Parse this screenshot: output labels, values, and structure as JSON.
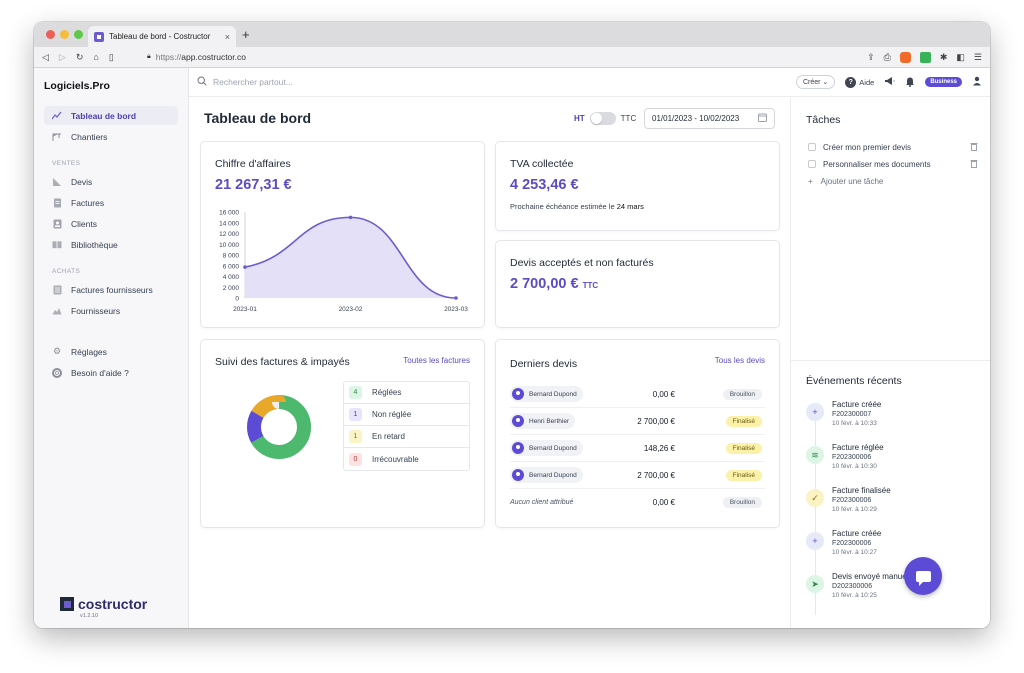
{
  "browser": {
    "tab_title": "Tableau de bord - Costructor",
    "tab_close": "×",
    "new_tab": "+",
    "url_protocol": "https://",
    "url_host": "app.costructor.co",
    "extension_badge": "1"
  },
  "sidebar": {
    "brand": "Logiciels.Pro",
    "items_top": [
      {
        "label": "Tableau de bord",
        "icon": "chart-line-icon",
        "active": true
      },
      {
        "label": "Chantiers",
        "icon": "crane-icon",
        "active": false
      }
    ],
    "section_sales": "VENTES",
    "items_sales": [
      {
        "label": "Devis",
        "icon": "chart-area-icon"
      },
      {
        "label": "Factures",
        "icon": "document-icon"
      },
      {
        "label": "Clients",
        "icon": "contact-card-icon"
      },
      {
        "label": "Bibliothèque",
        "icon": "books-icon"
      }
    ],
    "section_purchases": "ACHATS",
    "items_purchases": [
      {
        "label": "Factures fournisseurs",
        "icon": "list-document-icon"
      },
      {
        "label": "Fournisseurs",
        "icon": "chart-landscape-icon"
      }
    ],
    "items_bottom": [
      {
        "label": "Réglages",
        "icon": "gear-icon"
      },
      {
        "label": "Besoin d'aide ?",
        "icon": "lifebuoy-icon"
      }
    ],
    "logo_text": "costructor",
    "version": "v1.2.10"
  },
  "topbar": {
    "search_placeholder": "Rechercher partout...",
    "create_label": "Créer",
    "help_label": "Aide",
    "plan_badge": "Business"
  },
  "dashboard": {
    "title": "Tableau de bord",
    "toggle_ht": "HT",
    "toggle_ttc": "TTC",
    "date_range": "01/01/2023 - 10/02/2023"
  },
  "revenue_card": {
    "title": "Chiffre d'affaires",
    "amount": "21 267,31 €"
  },
  "chart_data": {
    "type": "area",
    "x": [
      "2023-01",
      "2023-02",
      "2023-03"
    ],
    "values": [
      5750,
      15000,
      0
    ],
    "y_ticks": [
      "16 000",
      "14 000",
      "12 000",
      "10 000",
      "8 000",
      "6 000",
      "4 000",
      "2 000",
      "0"
    ],
    "ylim": [
      0,
      16000
    ],
    "grid": false,
    "colors": {
      "line": "#6d5bd0",
      "fill": "#e4e0f8"
    }
  },
  "vat_card": {
    "title": "TVA collectée",
    "amount": "4 253,46 €",
    "note_prefix": "Prochaine échéance estimée le",
    "note_date": "24 mars"
  },
  "quotes_unbilled_card": {
    "title": "Devis acceptés et non facturés",
    "amount": "2 700,00 €",
    "suffix": "TTC"
  },
  "invoices_card": {
    "title": "Suivi des factures & impayés",
    "link": "Toutes les factures",
    "legend": [
      {
        "count": "4",
        "label": "Réglées",
        "color": "#4cb96f",
        "badge_bg": "#dcf5e4",
        "badge_fg": "#2f8a4c"
      },
      {
        "count": "1",
        "label": "Non réglée",
        "color": "#5b4bd5",
        "badge_bg": "#e7e4fb",
        "badge_fg": "#4c3fb0"
      },
      {
        "count": "1",
        "label": "En retard",
        "color": "#e8a82a",
        "badge_bg": "#fcf4c5",
        "badge_fg": "#8a6d10"
      },
      {
        "count": "0",
        "label": "Irrécouvrable",
        "color": "#e0524f",
        "badge_bg": "#fde2e1",
        "badge_fg": "#b43b38"
      }
    ],
    "donut_values": [
      4,
      1,
      1,
      0
    ]
  },
  "recent_quotes_card": {
    "title": "Derniers devis",
    "link": "Tous les devis",
    "rows": [
      {
        "client": "Bernard Dupond",
        "amount": "0,00 €",
        "status": "Brouillon",
        "status_type": "draft"
      },
      {
        "client": "Henri Berthier",
        "amount": "2 700,00 €",
        "status": "Finalisé",
        "status_type": "final"
      },
      {
        "client": "Bernard Dupond",
        "amount": "148,26 €",
        "status": "Finalisé",
        "status_type": "final"
      },
      {
        "client": "Bernard Dupond",
        "amount": "2 700,00 €",
        "status": "Finalisé",
        "status_type": "final"
      },
      {
        "client": "Aucun client attribué",
        "amount": "0,00 €",
        "status": "Brouillon",
        "status_type": "draft",
        "no_client": true
      }
    ]
  },
  "tasks": {
    "title": "Tâches",
    "items": [
      "Créer mon premier devis",
      "Personnaliser mes documents"
    ],
    "add_label": "Ajouter une tâche"
  },
  "events": {
    "title": "Événements récents",
    "items": [
      {
        "title": "Facture créée",
        "ref": "F202300007",
        "date": "10 févr. à 10:33",
        "icon": "plus-icon",
        "bg": "#e6e9f7",
        "fg": "#5b4bd5"
      },
      {
        "title": "Facture réglée",
        "ref": "F202300006",
        "date": "10 févr. à 10:30",
        "icon": "money-icon",
        "bg": "#dcf5e4",
        "fg": "#2f8a4c"
      },
      {
        "title": "Facture finalisée",
        "ref": "F202300006",
        "date": "10 févr. à 10:29",
        "icon": "check-icon",
        "bg": "#fbf3c4",
        "fg": "#8a6d10"
      },
      {
        "title": "Facture créée",
        "ref": "F202300006",
        "date": "10 févr. à 10:27",
        "icon": "plus-icon",
        "bg": "#e6e9f7",
        "fg": "#5b4bd5"
      },
      {
        "title": "Devis envoyé manuellement",
        "ref": "D202300006",
        "date": "10 févr. à 10:25",
        "icon": "send-icon",
        "bg": "#dcf5e4",
        "fg": "#2f8a4c"
      }
    ]
  }
}
